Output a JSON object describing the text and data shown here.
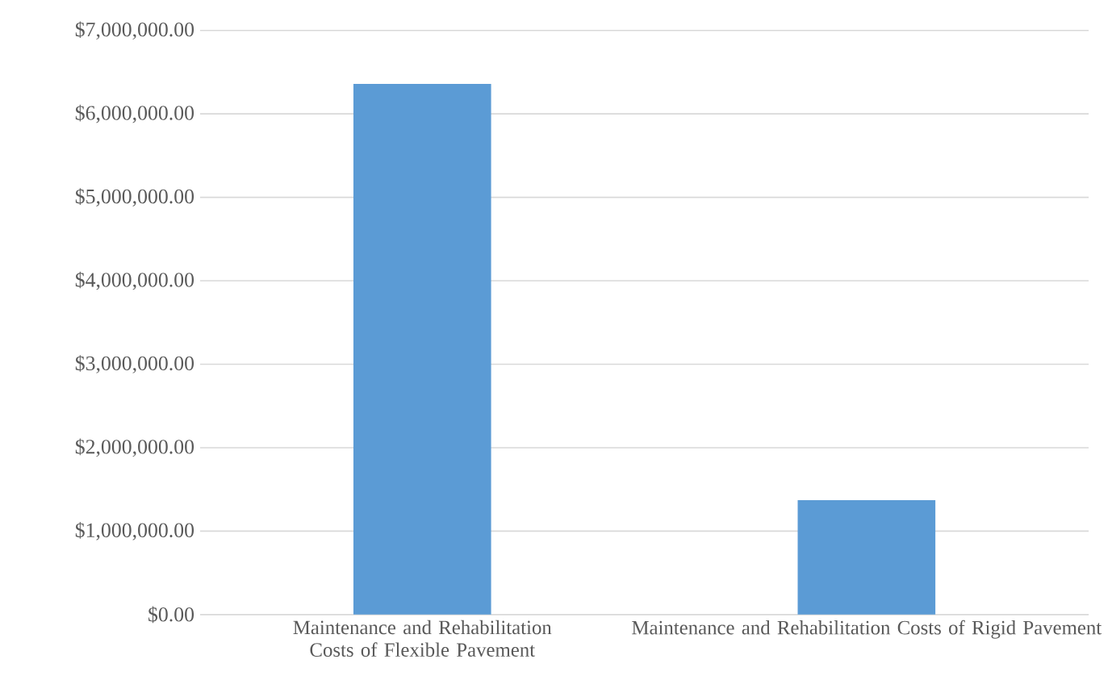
{
  "chart_data": {
    "type": "bar",
    "categories": [
      "Maintenance and Rehabilitation Costs of Flexible Pavement",
      "Maintenance and Rehabilitation Costs of Rigid Pavement"
    ],
    "values": [
      6360000,
      1370000
    ],
    "color": "#5b9bd5",
    "ylim": [
      0,
      7000000
    ],
    "yticks": [
      {
        "value": 0,
        "label": "$0.00"
      },
      {
        "value": 1000000,
        "label": "$1,000,000.00"
      },
      {
        "value": 2000000,
        "label": "$2,000,000.00"
      },
      {
        "value": 3000000,
        "label": "$3,000,000.00"
      },
      {
        "value": 4000000,
        "label": "$4,000,000.00"
      },
      {
        "value": 5000000,
        "label": "$5,000,000.00"
      },
      {
        "value": 6000000,
        "label": "$6,000,000.00"
      },
      {
        "value": 7000000,
        "label": "$7,000,000.00"
      }
    ],
    "grid": "y"
  }
}
